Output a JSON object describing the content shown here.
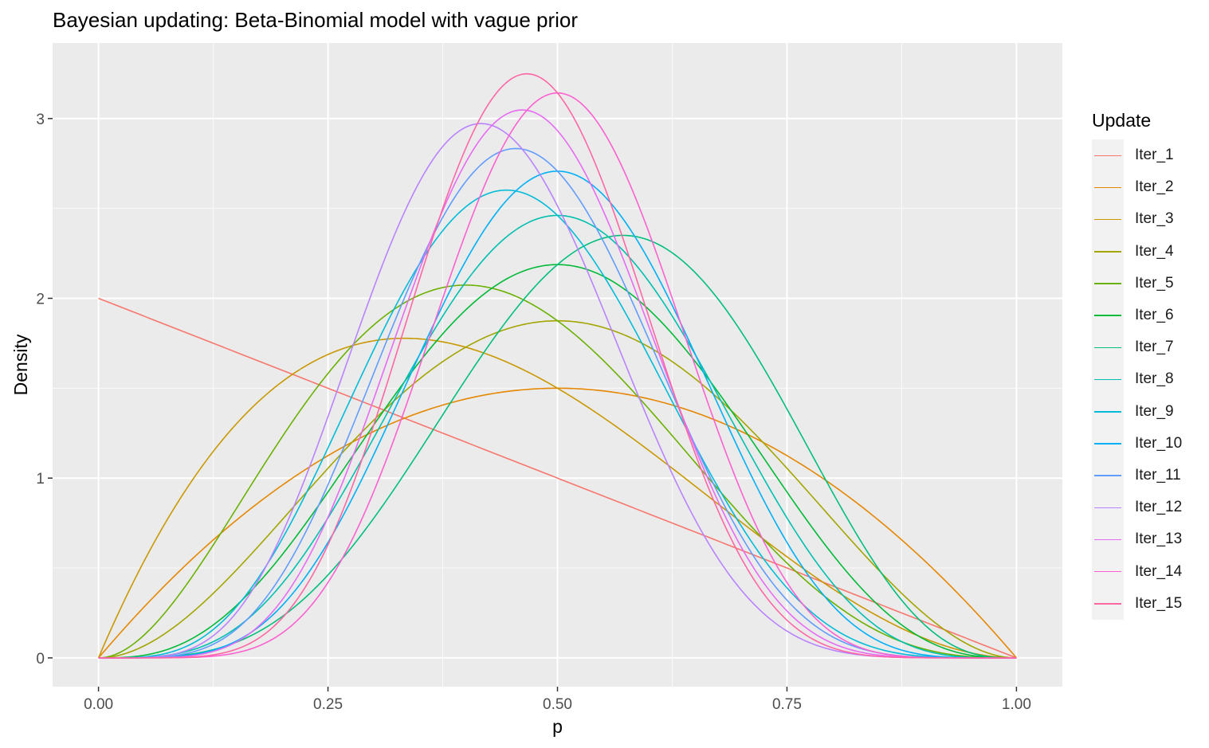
{
  "chart_data": {
    "type": "line",
    "title": "Bayesian updating: Beta-Binomial model with vague prior",
    "xlabel": "p",
    "ylabel": "Density",
    "xlim": [
      -0.05,
      1.05
    ],
    "ylim": [
      -0.16,
      3.42
    ],
    "x_ticks": [
      "0.00",
      "0.25",
      "0.50",
      "0.75",
      "1.00"
    ],
    "y_ticks": [
      "0",
      "1",
      "2",
      "3"
    ],
    "grid": true,
    "legend_position": "right",
    "legend_title": "Update",
    "series": [
      {
        "name": "Iter_1",
        "color": "#F8766D",
        "alpha": 1,
        "beta": 2
      },
      {
        "name": "Iter_2",
        "color": "#E58700",
        "alpha": 2,
        "beta": 2
      },
      {
        "name": "Iter_3",
        "color": "#C99800",
        "alpha": 2,
        "beta": 3
      },
      {
        "name": "Iter_4",
        "color": "#A3A500",
        "alpha": 3,
        "beta": 3
      },
      {
        "name": "Iter_5",
        "color": "#6BB100",
        "alpha": 3,
        "beta": 4
      },
      {
        "name": "Iter_6",
        "color": "#00BA38",
        "alpha": 4,
        "beta": 4
      },
      {
        "name": "Iter_7",
        "color": "#00BF7D",
        "alpha": 5,
        "beta": 4
      },
      {
        "name": "Iter_8",
        "color": "#00C0AF",
        "alpha": 5,
        "beta": 5
      },
      {
        "name": "Iter_9",
        "color": "#00BCD8",
        "alpha": 5,
        "beta": 6
      },
      {
        "name": "Iter_10",
        "color": "#00B0F6",
        "alpha": 6,
        "beta": 6
      },
      {
        "name": "Iter_11",
        "color": "#619CFF",
        "alpha": 6,
        "beta": 7
      },
      {
        "name": "Iter_12",
        "color": "#B983FF",
        "alpha": 6,
        "beta": 8
      },
      {
        "name": "Iter_13",
        "color": "#E76BF3",
        "alpha": 7,
        "beta": 8
      },
      {
        "name": "Iter_14",
        "color": "#FD61D1",
        "alpha": 8,
        "beta": 8
      },
      {
        "name": "Iter_15",
        "color": "#FF67A4",
        "alpha": 8,
        "beta": 9
      }
    ]
  }
}
